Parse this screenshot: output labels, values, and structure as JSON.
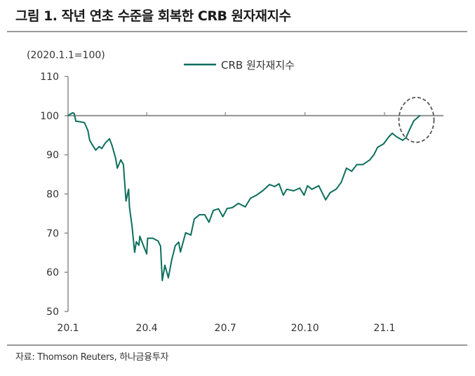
{
  "title": "그림 1. 작년 연초 수준을 회복한 CRB 원자재지수",
  "source": "자료: Thomson Reuters, 하나금융투자",
  "chart_data": {
    "type": "line",
    "title": "그림 1. 작년 연초 수준을 회복한 CRB 원자재지수",
    "unit_label": "(2020.1.1=100)",
    "xlabel": "",
    "ylabel": "",
    "ylim": [
      50,
      110
    ],
    "yticks": [
      50,
      60,
      70,
      80,
      90,
      100,
      110
    ],
    "xlim": [
      "2020-01-01",
      "2021-03-01"
    ],
    "xticks": [
      {
        "date": "2020-01-01",
        "label": "20.1"
      },
      {
        "date": "2020-04-01",
        "label": "20.4"
      },
      {
        "date": "2020-07-01",
        "label": "20.7"
      },
      {
        "date": "2020-10-01",
        "label": "20.10"
      },
      {
        "date": "2021-01-01",
        "label": "21.1"
      }
    ],
    "reference_line": 100,
    "legend_position": "top-center",
    "grid": false,
    "annotation": "dashed ellipse around the latest values near 100",
    "series": [
      {
        "name": "CRB 원자재지수",
        "color": "#0e6e5c",
        "points": [
          [
            "2020-01-01",
            100
          ],
          [
            "2020-01-06",
            100.7
          ],
          [
            "2020-01-08",
            100.6
          ],
          [
            "2020-01-10",
            98.6
          ],
          [
            "2020-01-16",
            98.4
          ],
          [
            "2020-01-20",
            98.2
          ],
          [
            "2020-01-24",
            96.2
          ],
          [
            "2020-01-26",
            93.7
          ],
          [
            "2020-01-29",
            92.6
          ],
          [
            "2020-02-02",
            91.2
          ],
          [
            "2020-02-06",
            92.1
          ],
          [
            "2020-02-09",
            91.6
          ],
          [
            "2020-02-13",
            93.0
          ],
          [
            "2020-02-18",
            94.1
          ],
          [
            "2020-02-21",
            92.3
          ],
          [
            "2020-02-25",
            89.1
          ],
          [
            "2020-02-27",
            86.6
          ],
          [
            "2020-03-02",
            88.7
          ],
          [
            "2020-03-05",
            87.5
          ],
          [
            "2020-03-08",
            78.2
          ],
          [
            "2020-03-11",
            81.2
          ],
          [
            "2020-03-12",
            76.7
          ],
          [
            "2020-03-15",
            71.7
          ],
          [
            "2020-03-18",
            65.1
          ],
          [
            "2020-03-20",
            67.8
          ],
          [
            "2020-03-23",
            66.9
          ],
          [
            "2020-03-24",
            69.2
          ],
          [
            "2020-03-28",
            66.9
          ],
          [
            "2020-04-01",
            64.7
          ],
          [
            "2020-04-02",
            68.7
          ],
          [
            "2020-04-08",
            68.7
          ],
          [
            "2020-04-14",
            68.0
          ],
          [
            "2020-04-17",
            66.7
          ],
          [
            "2020-04-19",
            57.9
          ],
          [
            "2020-04-22",
            61.8
          ],
          [
            "2020-04-26",
            58.6
          ],
          [
            "2020-04-30",
            63.3
          ],
          [
            "2020-05-04",
            66.8
          ],
          [
            "2020-05-08",
            67.7
          ],
          [
            "2020-05-10",
            65.2
          ],
          [
            "2020-05-16",
            70.1
          ],
          [
            "2020-05-22",
            69.5
          ],
          [
            "2020-05-26",
            73.6
          ],
          [
            "2020-06-01",
            74.7
          ],
          [
            "2020-06-07",
            74.7
          ],
          [
            "2020-06-12",
            72.8
          ],
          [
            "2020-06-17",
            75.8
          ],
          [
            "2020-06-23",
            76.2
          ],
          [
            "2020-06-28",
            74.2
          ],
          [
            "2020-07-03",
            76.3
          ],
          [
            "2020-07-09",
            76.5
          ],
          [
            "2020-07-16",
            77.6
          ],
          [
            "2020-07-24",
            76.7
          ],
          [
            "2020-07-30",
            78.9
          ],
          [
            "2020-08-06",
            79.7
          ],
          [
            "2020-08-13",
            80.8
          ],
          [
            "2020-08-21",
            82.4
          ],
          [
            "2020-08-27",
            81.9
          ],
          [
            "2020-09-01",
            82.6
          ],
          [
            "2020-09-06",
            79.7
          ],
          [
            "2020-09-10",
            81.2
          ],
          [
            "2020-09-18",
            80.8
          ],
          [
            "2020-09-25",
            81.5
          ],
          [
            "2020-09-30",
            79.7
          ],
          [
            "2020-10-04",
            82.1
          ],
          [
            "2020-10-09",
            81.2
          ],
          [
            "2020-10-17",
            82.1
          ],
          [
            "2020-10-25",
            78.5
          ],
          [
            "2020-10-30",
            80.3
          ],
          [
            "2020-11-06",
            81.2
          ],
          [
            "2020-11-12",
            83.0
          ],
          [
            "2020-11-18",
            86.6
          ],
          [
            "2020-11-24",
            85.8
          ],
          [
            "2020-11-30",
            87.5
          ],
          [
            "2020-12-07",
            87.5
          ],
          [
            "2020-12-15",
            88.7
          ],
          [
            "2020-12-20",
            90.1
          ],
          [
            "2020-12-24",
            91.9
          ],
          [
            "2020-12-31",
            92.8
          ],
          [
            "2021-01-06",
            94.6
          ],
          [
            "2021-01-10",
            95.5
          ],
          [
            "2021-01-15",
            94.6
          ],
          [
            "2021-01-22",
            93.7
          ],
          [
            "2021-01-26",
            94.4
          ],
          [
            "2021-01-30",
            96.4
          ],
          [
            "2021-02-04",
            98.7
          ],
          [
            "2021-02-11",
            100.0
          ]
        ]
      }
    ]
  }
}
